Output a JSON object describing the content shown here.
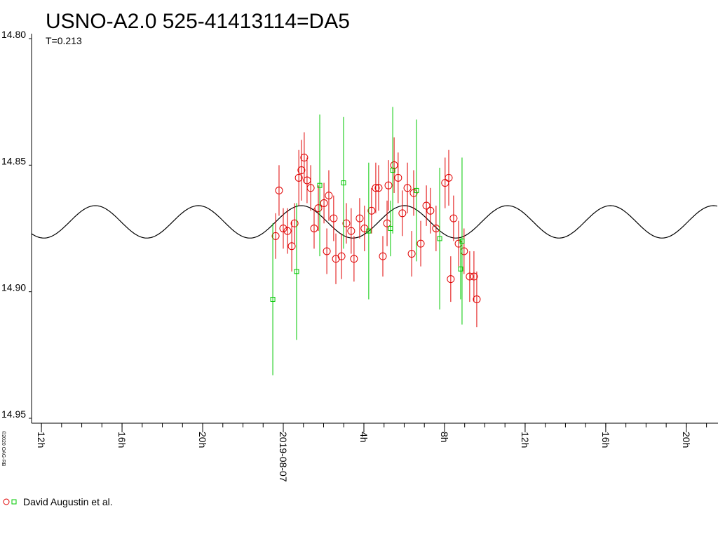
{
  "chart_data": {
    "type": "errorscatter",
    "title": "USNO-A2.0 525-41413114=DA5",
    "subtitle": {
      "value": 0.213,
      "label": "T=0.213"
    },
    "credit": "©2020 OAG-RB",
    "xlim": [
      -12.49,
      21.57
    ],
    "xticks": [
      {
        "value": -12,
        "label": "12h"
      },
      {
        "value": -8,
        "label": "16h"
      },
      {
        "value": -4,
        "label": "20h"
      },
      {
        "value": 0,
        "label": "2019-08-07"
      },
      {
        "value": 4,
        "label": "4h"
      },
      {
        "value": 8,
        "label": "8h"
      },
      {
        "value": 12,
        "label": "12h"
      },
      {
        "value": 16,
        "label": "16h"
      },
      {
        "value": 20,
        "label": "20h"
      }
    ],
    "ylim": [
      14.8,
      14.95
    ],
    "y_inverted": true,
    "yticks": [
      {
        "value": 14.8,
        "label": "14.80"
      },
      {
        "value": 14.85,
        "label": "14.85"
      },
      {
        "value": 14.9,
        "label": "14.90"
      },
      {
        "value": 14.95,
        "label": "14.95"
      }
    ],
    "fit": {
      "mean": 14.8724,
      "amplitude": 0.0064,
      "epoch": 0.9,
      "color": "#000000"
    },
    "series": [
      {
        "name": "David Augustin et al.",
        "groups": [
          {
            "marker": "circle",
            "color": "#e00000",
            "x": [
              -0.38,
              -0.21,
              0.0,
              0.21,
              0.42,
              0.56,
              0.77,
              0.9,
              1.04,
              1.18,
              1.36,
              1.53,
              1.74,
              2.02,
              2.16,
              2.26,
              2.5,
              2.61,
              2.89,
              3.13,
              3.37,
              3.51,
              3.79,
              4.03,
              4.38,
              4.59,
              4.73,
              4.94,
              5.15,
              5.22,
              5.5,
              5.7,
              5.91,
              6.16,
              6.37,
              6.47,
              6.82,
              7.1,
              7.3,
              7.58,
              8.03,
              8.21,
              8.31,
              8.45,
              8.7,
              8.97,
              9.25,
              9.46,
              9.6
            ],
            "values": [
              14.878,
              14.86,
              14.875,
              14.876,
              14.882,
              14.873,
              14.855,
              14.852,
              14.847,
              14.856,
              14.859,
              14.875,
              14.867,
              14.865,
              14.884,
              14.862,
              14.871,
              14.887,
              14.886,
              14.873,
              14.876,
              14.887,
              14.871,
              14.875,
              14.868,
              14.859,
              14.859,
              14.886,
              14.873,
              14.858,
              14.85,
              14.855,
              14.869,
              14.859,
              14.885,
              14.861,
              14.881,
              14.866,
              14.868,
              14.875,
              14.857,
              14.855,
              14.895,
              14.871,
              14.881,
              14.884,
              14.894,
              14.894,
              14.903
            ],
            "errors": [
              0.009,
              0.01,
              0.008,
              0.009,
              0.01,
              0.008,
              0.011,
              0.012,
              0.01,
              0.009,
              0.009,
              0.008,
              0.009,
              0.008,
              0.009,
              0.01,
              0.009,
              0.01,
              0.009,
              0.008,
              0.009,
              0.009,
              0.008,
              0.009,
              0.009,
              0.01,
              0.009,
              0.008,
              0.009,
              0.01,
              0.011,
              0.01,
              0.009,
              0.01,
              0.009,
              0.009,
              0.009,
              0.008,
              0.009,
              0.009,
              0.01,
              0.011,
              0.009,
              0.009,
              0.009,
              0.009,
              0.01,
              0.01,
              0.011
            ]
          },
          {
            "marker": "square",
            "color": "#00c800",
            "x": [
              -0.52,
              0.66,
              1.81,
              2.99,
              4.24,
              5.32,
              5.43,
              6.61,
              7.76,
              8.8,
              8.87
            ],
            "values": [
              14.903,
              14.892,
              14.858,
              14.857,
              14.876,
              14.875,
              14.852,
              14.86,
              14.879,
              14.891,
              14.88
            ],
            "errors": [
              0.03,
              0.027,
              0.028,
              0.026,
              0.027,
              0.011,
              0.025,
              0.028,
              0.028,
              0.012,
              0.033
            ]
          }
        ]
      }
    ]
  }
}
